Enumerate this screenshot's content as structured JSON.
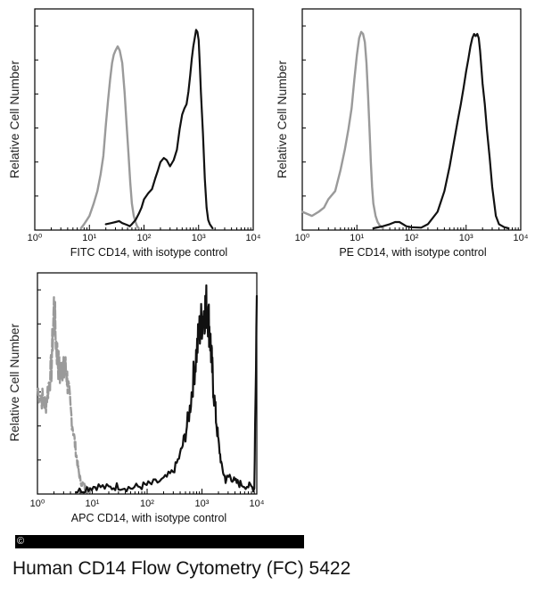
{
  "caption": "Human CD14 Flow Cytometry (FC) 5422",
  "copyright": "©",
  "colors": {
    "isotype": "#9a9a9a",
    "sample": "#111111",
    "axis": "#000000"
  },
  "chart_data": [
    {
      "type": "line",
      "title": "",
      "xlabel": "FITC  CD14,  with isotype control",
      "ylabel": "Relative Cell Number",
      "xscale": "log",
      "xlim": [
        1,
        10000
      ],
      "ylim": [
        0,
        100
      ],
      "xticks": [
        "10⁰",
        "10¹",
        "10²",
        "10³",
        "10⁴"
      ],
      "series": [
        {
          "name": "isotype control",
          "color": "#9a9a9a",
          "x": [
            7,
            8,
            9,
            10,
            12,
            14,
            16,
            18,
            20,
            22,
            24,
            26,
            28,
            30,
            33,
            36,
            40,
            44,
            48,
            52,
            56,
            60,
            65,
            70,
            75,
            80
          ],
          "y": [
            0,
            2,
            4,
            6,
            12,
            18,
            26,
            35,
            50,
            62,
            72,
            80,
            84,
            86,
            88,
            86,
            80,
            66,
            50,
            36,
            22,
            12,
            6,
            3,
            1,
            0
          ]
        },
        {
          "name": "CD14",
          "color": "#111111",
          "x": [
            20,
            25,
            30,
            35,
            40,
            45,
            50,
            55,
            60,
            70,
            80,
            90,
            100,
            120,
            140,
            160,
            180,
            200,
            230,
            260,
            300,
            350,
            400,
            450,
            500,
            550,
            600,
            650,
            700,
            750,
            800,
            850,
            900,
            950,
            1000,
            1050,
            1100,
            1200,
            1300,
            1400,
            1500,
            1600,
            1700,
            1800
          ],
          "y": [
            2,
            2.5,
            3,
            3.5,
            2.5,
            2,
            1.5,
            1,
            2,
            4,
            7,
            10,
            14,
            17,
            19,
            24,
            28,
            32,
            34,
            33,
            30,
            33,
            38,
            48,
            55,
            58,
            60,
            66,
            74,
            82,
            88,
            92,
            96,
            95,
            91,
            80,
            66,
            46,
            24,
            10,
            4,
            2,
            1,
            0
          ]
        }
      ]
    },
    {
      "type": "line",
      "title": "",
      "xlabel": "PE  CD14,  with isotype control",
      "ylabel": "Relative Cell Number",
      "xscale": "log",
      "xlim": [
        1,
        10000
      ],
      "ylim": [
        0,
        100
      ],
      "xticks": [
        "10⁰",
        "10¹",
        "10²",
        "10³",
        "10⁴"
      ],
      "series": [
        {
          "name": "isotype control",
          "color": "#9a9a9a",
          "x": [
            1,
            1.5,
            2,
            2.5,
            3,
            4,
            5,
            6,
            7,
            8,
            9,
            10,
            11,
            12,
            13,
            14,
            15,
            16,
            17,
            18,
            19,
            20,
            22,
            24,
            26,
            28,
            30
          ],
          "y": [
            8,
            6,
            8,
            10,
            14,
            18,
            28,
            38,
            48,
            58,
            72,
            84,
            92,
            95,
            94,
            90,
            80,
            64,
            48,
            32,
            20,
            12,
            6,
            3,
            1.5,
            0.8,
            0
          ]
        },
        {
          "name": "CD14",
          "color": "#111111",
          "x": [
            20,
            30,
            40,
            50,
            60,
            70,
            80,
            100,
            150,
            200,
            300,
            400,
            500,
            600,
            700,
            800,
            900,
            1000,
            1100,
            1200,
            1300,
            1400,
            1500,
            1600,
            1700,
            1800,
            1900,
            2000,
            2200,
            2400,
            2700,
            3000,
            3500,
            4000,
            5000,
            6000
          ],
          "y": [
            0,
            1,
            2,
            3,
            3,
            2,
            1,
            0.5,
            0.3,
            2,
            8,
            18,
            30,
            42,
            52,
            60,
            68,
            76,
            82,
            88,
            92,
            94,
            93,
            94,
            92,
            86,
            78,
            70,
            60,
            48,
            34,
            20,
            6,
            2,
            0.5,
            0
          ]
        }
      ]
    },
    {
      "type": "line",
      "title": "",
      "xlabel": "APC CD14, with isotype control",
      "ylabel": "Relative Cell Number",
      "xscale": "log",
      "xlim": [
        1,
        10000
      ],
      "ylim": [
        0,
        100
      ],
      "xticks": [
        "10⁰",
        "10¹",
        "10²",
        "10³",
        "10⁴"
      ],
      "series": [
        {
          "name": "isotype control",
          "color": "#9a9a9a",
          "style": "noisy",
          "x": [
            1,
            1.2,
            1.4,
            1.6,
            1.8,
            2,
            2.2,
            2.4,
            2.6,
            2.8,
            3,
            3.3,
            3.6,
            4,
            4.5,
            5,
            5.5,
            6,
            7,
            8,
            9,
            10
          ],
          "y": [
            50,
            46,
            42,
            52,
            60,
            90,
            72,
            62,
            56,
            64,
            58,
            60,
            52,
            40,
            30,
            20,
            12,
            6,
            3,
            1,
            0.5,
            0
          ]
        },
        {
          "name": "CD14",
          "color": "#111111",
          "style": "noisy",
          "x": [
            5,
            8,
            12,
            20,
            30,
            50,
            80,
            120,
            200,
            300,
            400,
            500,
            600,
            700,
            800,
            900,
            1000,
            1100,
            1200,
            1300,
            1400,
            1500,
            1600,
            1800,
            2000,
            2300,
            2700,
            3200,
            4000,
            5000,
            7000,
            9000,
            10000
          ],
          "y": [
            0,
            2,
            3,
            2,
            3,
            2,
            3,
            4,
            6,
            10,
            18,
            28,
            40,
            56,
            68,
            78,
            84,
            88,
            90,
            86,
            76,
            64,
            52,
            36,
            24,
            12,
            6,
            8,
            5,
            4,
            3,
            2,
            95
          ]
        }
      ]
    }
  ]
}
